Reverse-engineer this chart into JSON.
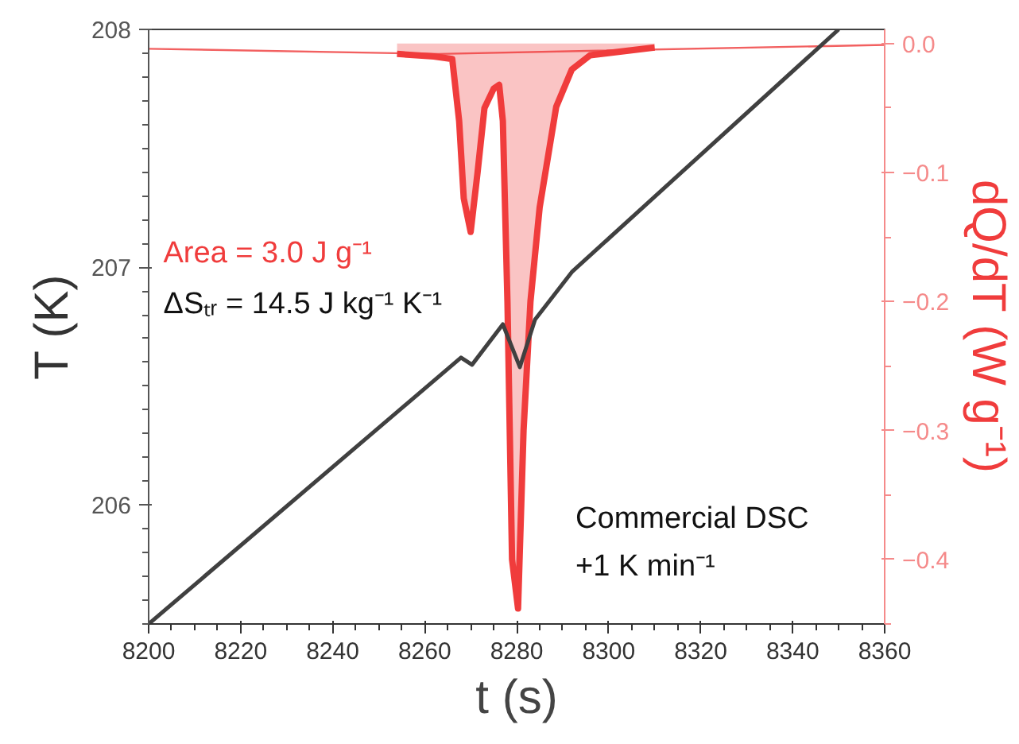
{
  "chart_data": {
    "type": "line",
    "xlabel": "t (s)",
    "ylabel": "T (K)",
    "y2label": "dQ/dT (W g⁻¹)",
    "xlim": [
      8200,
      8360
    ],
    "xticks": [
      8200,
      8220,
      8240,
      8260,
      8280,
      8300,
      8320,
      8340,
      8360
    ],
    "ylim": [
      205.5,
      208.0
    ],
    "yticks": [
      206,
      207,
      208
    ],
    "y2lim": [
      -0.45,
      0.011
    ],
    "y2ticks": [
      {
        "value": 0,
        "label": "0.0"
      },
      -0.1,
      -0.2,
      -0.3,
      -0.4
    ],
    "grid": false,
    "marker": "none",
    "line_style": "solid",
    "series": [
      {
        "type": "line",
        "axis": "y2",
        "color": "#f26060",
        "x": [
          8200,
          8263,
          8360
        ],
        "values": [
          -0.004,
          -0.008,
          -0.001
        ]
      },
      {
        "type": "area",
        "axis": "y2",
        "color": "#f03c3c",
        "x": [
          8254,
          8262,
          8266,
          8267.5,
          8268.5,
          8270,
          8271.5,
          8273,
          8275,
          8276.2,
          8277,
          8278,
          8279,
          8280.3,
          8281.5,
          8283,
          8285,
          8288.6,
          8292,
          8296,
          8310
        ],
        "values": [
          -0.008,
          -0.01,
          -0.012,
          -0.06,
          -0.12,
          -0.146,
          -0.1,
          -0.05,
          -0.035,
          -0.032,
          -0.06,
          -0.2,
          -0.4,
          -0.438,
          -0.3,
          -0.2,
          -0.127,
          -0.049,
          -0.02,
          -0.009,
          -0.003
        ]
      },
      {
        "color": "#404040",
        "x": [
          8200,
          8267.9,
          8270.3,
          8277,
          8280.7,
          8284,
          8292,
          8350
        ],
        "values": [
          205.5,
          206.62,
          206.59,
          206.76,
          206.58,
          206.78,
          206.98,
          208.0
        ]
      }
    ],
    "annotations": [
      "Area = 3.0 J g⁻¹",
      "ΔSₜᵣ = 14.5 J kg⁻¹ K⁻¹",
      "Commercial DSC",
      "+1 K min⁻¹"
    ]
  }
}
